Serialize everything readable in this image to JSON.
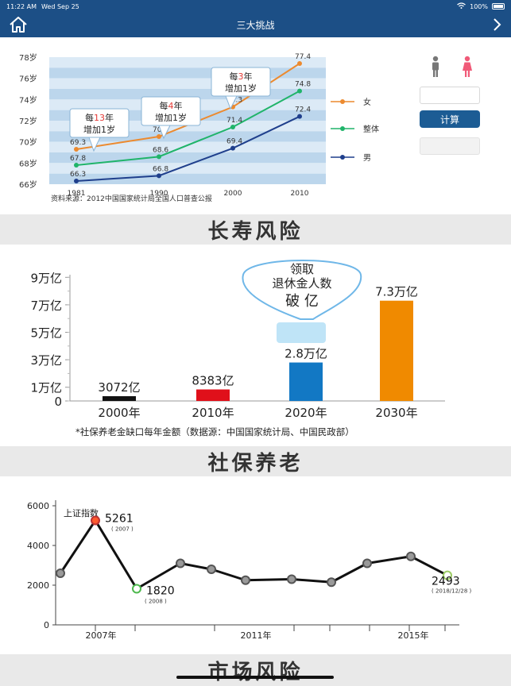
{
  "status_bar": {
    "time": "11:22 AM",
    "date": "Wed Sep 25",
    "battery": "100%"
  },
  "nav": {
    "title": "三大挑战"
  },
  "life": {
    "years": [
      "1981",
      "1990",
      "2000",
      "2010"
    ],
    "y_ticks": [
      "78岁",
      "76岁",
      "74岁",
      "72岁",
      "70岁",
      "68岁",
      "66岁"
    ],
    "female": [
      69.3,
      70.5,
      73.3,
      77.4
    ],
    "overall": [
      67.8,
      68.6,
      71.4,
      74.8
    ],
    "male": [
      66.3,
      66.8,
      69.4,
      72.4
    ],
    "female_labels": [
      "69.3",
      "70.5",
      "73.3",
      "77.4"
    ],
    "overall_labels": [
      "67.8",
      "68.6",
      "71.4",
      "74.8"
    ],
    "male_labels": [
      "66.3",
      "66.8",
      "69.4",
      "72.4"
    ],
    "legend": {
      "female": "女",
      "overall": "整体",
      "male": "男"
    },
    "colors": {
      "female": "#ec8a2f",
      "overall": "#20b46a",
      "male": "#1f3f8c",
      "band": "#c9dff0",
      "highlight": "#e53935"
    },
    "callouts": [
      {
        "pre": "每",
        "num": "13",
        "post": "年",
        "line2": "增加1岁"
      },
      {
        "pre": "每",
        "num": "4",
        "post": "年",
        "line2": "增加1岁"
      },
      {
        "pre": "每",
        "num": "3",
        "post": "年",
        "line2": "增加1岁"
      }
    ],
    "source": "资料来源：2012中国国家统计局全国人口普查公报"
  },
  "calculator": {
    "calc_label": "计算",
    "icons": [
      "male-icon",
      "female-icon"
    ]
  },
  "sections": {
    "longevity": "长寿风险",
    "social": "社保养老",
    "market": "市场风险"
  },
  "pension": {
    "y_ticks": [
      "9万亿",
      "7万亿",
      "5万亿",
      "3万亿",
      "1万亿",
      "0"
    ],
    "categories": [
      "2000年",
      "2010年",
      "2020年",
      "2030年"
    ],
    "values": [
      0.3072,
      0.8383,
      2.8,
      7.3
    ],
    "value_labels": [
      "3072亿",
      "8383亿",
      "2.8万亿",
      "7.3万亿"
    ],
    "colors": [
      "#111111",
      "#e0101a",
      "#1278c4",
      "#f08a00"
    ],
    "balloon": {
      "line1": "领取",
      "line2": "退休金人数",
      "line3": "破 亿"
    },
    "footnote": "*社保养老金缺口每年金额（数据源：中国国家统计局、中国民政部）"
  },
  "market": {
    "y_ticks": [
      "6000",
      "4000",
      "2000",
      "0"
    ],
    "x_labels": [
      "2007年",
      "2011年",
      "2015年"
    ],
    "series_label": "上证指数",
    "values": [
      2600,
      5261,
      1820,
      3100,
      2800,
      2250,
      2300,
      2150,
      3100,
      3450,
      2493
    ],
    "annotations": [
      {
        "value": "5261",
        "date": "( 2007 )"
      },
      {
        "value": "1820",
        "date": "( 2008 )"
      },
      {
        "value": "2493",
        "date": "( 2018/12/28 )"
      }
    ],
    "colors": {
      "line": "#111111",
      "peak": "#ff5a2e",
      "low": "#4cb84c",
      "last": "#9ccc65"
    }
  },
  "chart_data": [
    {
      "type": "line",
      "x": [
        "1981",
        "1990",
        "2000",
        "2010"
      ],
      "series": [
        {
          "name": "女",
          "values": [
            69.3,
            70.5,
            73.3,
            77.4
          ]
        },
        {
          "name": "整体",
          "values": [
            67.8,
            68.6,
            71.4,
            74.8
          ]
        },
        {
          "name": "男",
          "values": [
            66.3,
            66.8,
            69.4,
            72.4
          ]
        }
      ],
      "ylim": [
        66,
        78
      ],
      "legend": "right"
    },
    {
      "type": "bar",
      "categories": [
        "2000年",
        "2010年",
        "2020年",
        "2030年"
      ],
      "values": [
        0.3072,
        0.8383,
        2.8,
        7.3
      ],
      "ylim": [
        0,
        9
      ]
    },
    {
      "type": "line",
      "title": "上证指数",
      "values": [
        2600,
        5261,
        1820,
        3100,
        2800,
        2250,
        2300,
        2150,
        3100,
        3450,
        2493
      ],
      "ylim": [
        0,
        6000
      ]
    }
  ]
}
